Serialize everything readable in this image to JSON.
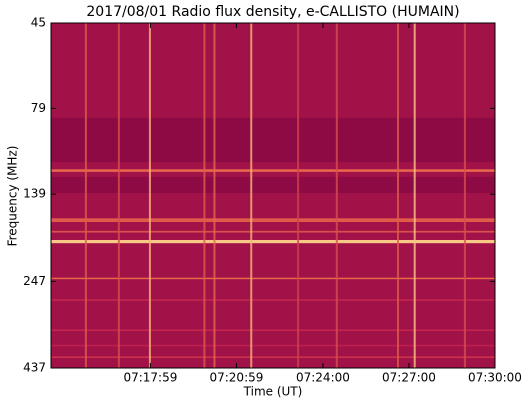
{
  "chart_data": {
    "type": "spectrogram",
    "title": "2017/08/01  Radio flux density, e-CALLISTO (HUMAIN)",
    "xlabel": "Time (UT)",
    "ylabel": "Frequency (MHz)",
    "xlim": [
      26071,
      27000
    ],
    "xticks": [
      {
        "value": 26279,
        "label": "07:17:59"
      },
      {
        "value": 26459,
        "label": "07:20:59"
      },
      {
        "value": 26640,
        "label": "07:24:00"
      },
      {
        "value": 26820,
        "label": "07:27:00"
      },
      {
        "value": 27000,
        "label": "07:30:00"
      }
    ],
    "ylim": [
      45,
      437
    ],
    "yticks": [
      45,
      79,
      139,
      247,
      437
    ],
    "yscale": "log",
    "yinverted": true,
    "colormap": [
      "#8e0a44",
      "#c4224e",
      "#f07a4a",
      "#fde8a0"
    ],
    "background": 0.12,
    "bands": [
      {
        "from": 84,
        "to": 112.5,
        "level": 0
      },
      {
        "from": 118,
        "to": 120,
        "level": 0.6
      },
      {
        "from": 124,
        "to": 138,
        "level": 0
      },
      {
        "from": 163,
        "to": 167,
        "level": 0.55
      },
      {
        "from": 177,
        "to": 179,
        "level": 0.5
      },
      {
        "from": 188,
        "to": 192,
        "level": 0.9
      },
      {
        "from": 241,
        "to": 243,
        "level": 0.6
      },
      {
        "from": 278,
        "to": 280,
        "level": 0.35
      },
      {
        "from": 339,
        "to": 341,
        "level": 0.35
      },
      {
        "from": 375,
        "to": 377,
        "level": 0.3
      },
      {
        "from": 405,
        "to": 407,
        "level": 0.4
      }
    ],
    "bursts": [
      {
        "t": 26144,
        "level": 0.55
      },
      {
        "t": 26213,
        "level": 0.5
      },
      {
        "t": 26278,
        "level": 0.85
      },
      {
        "t": 26392,
        "level": 0.55
      },
      {
        "t": 26413,
        "level": 0.6
      },
      {
        "t": 26490,
        "level": 0.85
      },
      {
        "t": 26588,
        "level": 0.45
      },
      {
        "t": 26669,
        "level": 0.5
      },
      {
        "t": 26797,
        "level": 0.55
      },
      {
        "t": 26832,
        "level": 0.9
      },
      {
        "t": 26937,
        "level": 0.5
      }
    ]
  }
}
